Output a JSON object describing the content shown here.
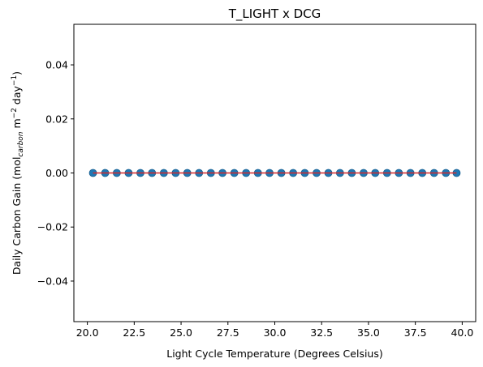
{
  "chart_data": {
    "type": "scatter",
    "title": "T_LIGHT x DCG",
    "xlabel": "Light Cycle Temperature (Degrees Celsius)",
    "ylabel": {
      "prefix": "Daily Carbon Gain (mol",
      "sub": "carbon",
      "mid": " m",
      "sup1": "−2",
      "mid2": " day",
      "sup2": "−1",
      "suffix": ")"
    },
    "xlim": [
      19.28,
      40.72
    ],
    "ylim": [
      -0.055,
      0.055
    ],
    "xticks": [
      20.0,
      22.5,
      25.0,
      27.5,
      30.0,
      32.5,
      35.0,
      37.5,
      40.0
    ],
    "xtick_labels": [
      "20.0",
      "22.5",
      "25.0",
      "27.5",
      "30.0",
      "32.5",
      "35.0",
      "37.5",
      "40.0"
    ],
    "yticks": [
      -0.04,
      -0.02,
      0.0,
      0.02,
      0.04
    ],
    "ytick_labels": [
      "−0.04",
      "−0.02",
      "0.00",
      "0.02",
      "0.04"
    ],
    "grid": false,
    "colors": {
      "points": "#1f77b4",
      "fit_line": "#d62728"
    },
    "series": [
      {
        "values_x": [
          20.3,
          20.95,
          21.57,
          22.2,
          22.83,
          23.45,
          24.08,
          24.71,
          25.33,
          25.96,
          26.59,
          27.21,
          27.84,
          28.47,
          29.1,
          29.72,
          30.35,
          30.98,
          31.6,
          32.23,
          32.86,
          33.48,
          34.11,
          34.74,
          35.36,
          35.99,
          36.62,
          37.24,
          37.87,
          38.5,
          39.13,
          39.7
        ],
        "values_y": [
          0,
          0,
          0,
          0,
          0,
          0,
          0,
          0,
          0,
          0,
          0,
          0,
          0,
          0,
          0,
          0,
          0,
          0,
          0,
          0,
          0,
          0,
          0,
          0,
          0,
          0,
          0,
          0,
          0,
          0,
          0,
          0
        ]
      }
    ],
    "fit_line": {
      "x": [
        20.3,
        39.7
      ],
      "y": [
        0,
        0
      ]
    }
  }
}
